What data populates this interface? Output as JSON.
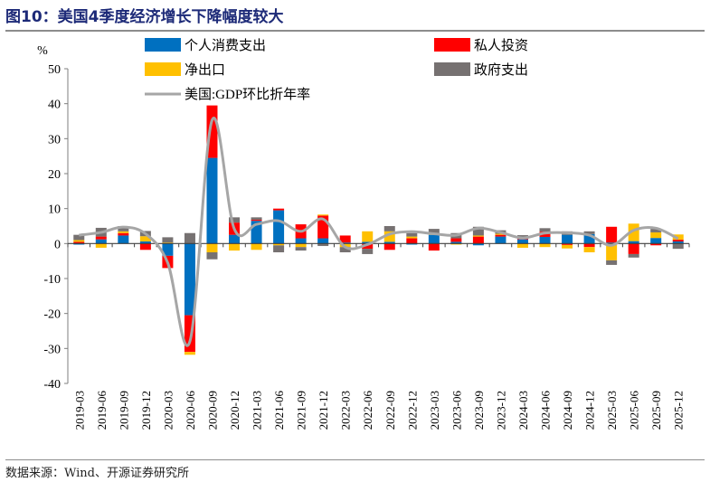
{
  "title": "图10：美国4季度经济增长下降幅度较大",
  "source": "数据来源：Wind、开源证券研究所",
  "chart_data": {
    "type": "bar",
    "stacked": true,
    "ylabel": "%",
    "ylim": [
      -40,
      50
    ],
    "yticks": [
      -40,
      -30,
      -20,
      -10,
      0,
      10,
      20,
      30,
      40,
      50
    ],
    "grid": false,
    "legend": "top",
    "categories": [
      "2019-03",
      "2019-06",
      "2019-09",
      "2019-12",
      "2020-03",
      "2020-06",
      "2020-09",
      "2020-12",
      "2021-03",
      "2021-06",
      "2021-09",
      "2021-12",
      "2022-03",
      "2022-06",
      "2022-09",
      "2022-12",
      "2023-03",
      "2023-06",
      "2023-09",
      "2023-12",
      "2024-03",
      "2024-06",
      "2024-09",
      "2024-12",
      "2025-03",
      "2025-06",
      "2025-09",
      "2025-12"
    ],
    "series": [
      {
        "name": "个人消费支出",
        "type": "bar",
        "color": "#0070c0",
        "values": [
          -0.3,
          1.2,
          2.3,
          0.6,
          -3.5,
          -20.5,
          24.5,
          2.5,
          6.5,
          9.5,
          1.5,
          1.5,
          0.3,
          0.5,
          0.5,
          -0.3,
          2.5,
          0.5,
          -0.5,
          2.0,
          1.2,
          1.9,
          2.5,
          2.7,
          0.3,
          0.7,
          1.6,
          0.6
        ]
      },
      {
        "name": "私人投资",
        "type": "bar",
        "color": "#ff0000",
        "values": [
          0.5,
          0.8,
          0.7,
          -1.8,
          -3.5,
          -10.5,
          15.0,
          3.5,
          0.3,
          0.5,
          4.0,
          6.5,
          2.0,
          -1.5,
          -1.8,
          1.5,
          -2.0,
          1.0,
          2.0,
          0.5,
          0.2,
          1.5,
          -0.4,
          -1.0,
          4.5,
          -3.0,
          -0.5,
          0.5
        ]
      },
      {
        "name": "净出口",
        "type": "bar",
        "color": "#ffc000",
        "values": [
          0.5,
          -1.2,
          0.5,
          1.5,
          0.3,
          -0.8,
          -2.5,
          -2.0,
          -1.8,
          -0.5,
          -1.0,
          0.3,
          -1.0,
          3.0,
          3.0,
          0.5,
          0.2,
          -0.3,
          0.3,
          0.3,
          -1.2,
          -1.0,
          -1.0,
          -1.5,
          -4.8,
          5.0,
          1.6,
          1.5
        ]
      },
      {
        "name": "政府支出",
        "type": "bar",
        "color": "#767171",
        "values": [
          1.5,
          2.5,
          1.5,
          1.5,
          1.5,
          3.0,
          -2.0,
          1.5,
          0.7,
          -2.0,
          -1.0,
          -0.7,
          -1.5,
          -1.5,
          1.5,
          1.0,
          1.5,
          1.5,
          2.5,
          1.0,
          1.0,
          1.0,
          1.0,
          0.8,
          -1.3,
          -1.0,
          1.0,
          -1.5
        ]
      },
      {
        "name": "美国:GDP环比折年率",
        "type": "line",
        "color": "#a6a6a6",
        "values": [
          2.4,
          3.2,
          4.7,
          2.8,
          -5.5,
          -28.0,
          35.3,
          4.2,
          5.5,
          6.5,
          3.5,
          7.0,
          -1.0,
          -0.3,
          2.7,
          3.4,
          2.8,
          2.4,
          4.4,
          3.2,
          1.6,
          3.0,
          3.1,
          2.4,
          -0.5,
          3.8,
          4.4,
          1.4
        ]
      }
    ]
  }
}
